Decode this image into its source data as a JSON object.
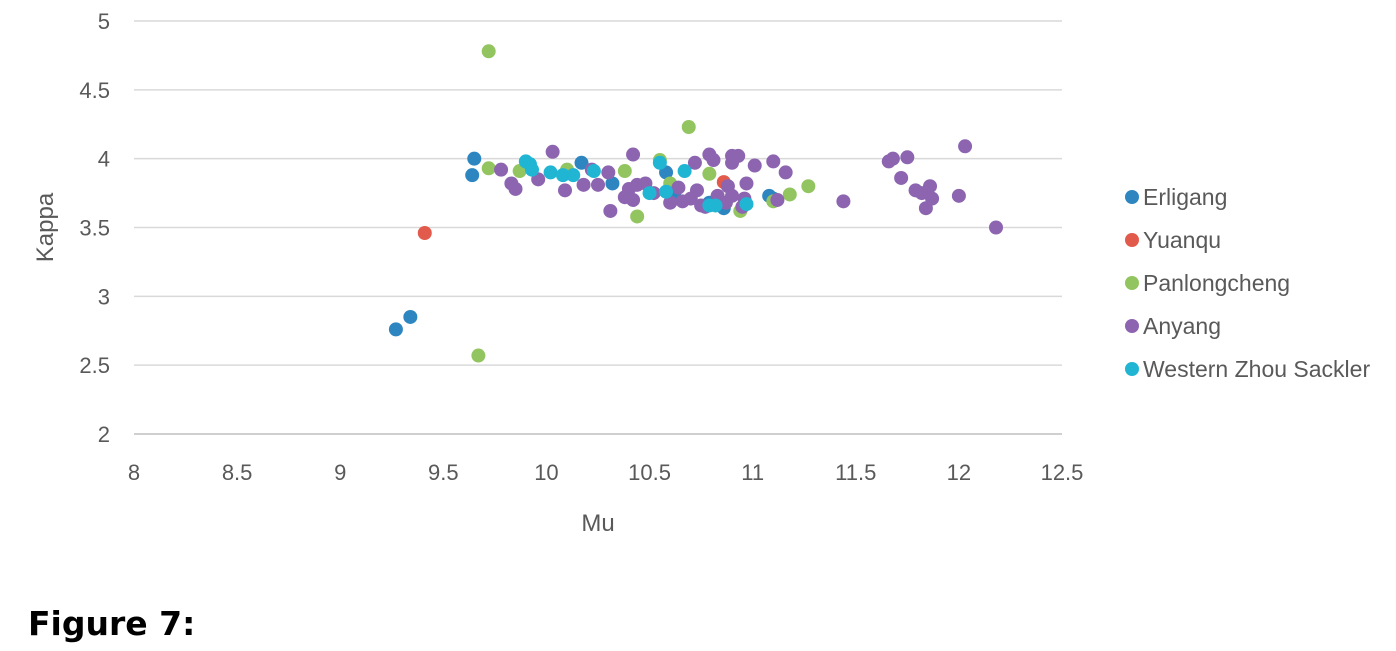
{
  "caption": "Figure 7:",
  "chart_data": {
    "type": "scatter",
    "xlabel": "Mu",
    "ylabel": "Kappa",
    "xlim": [
      8,
      12.5
    ],
    "ylim": [
      2,
      5
    ],
    "x_ticks": [
      "8",
      "8.5",
      "9",
      "9.5",
      "10",
      "10.5",
      "11",
      "11.5",
      "12",
      "12.5"
    ],
    "y_ticks": [
      "2",
      "2.5",
      "3",
      "3.5",
      "4",
      "4.5",
      "5"
    ],
    "grid": "horizontal",
    "legend_position": "right",
    "series": [
      {
        "name": "Erligang",
        "color": "#2E86C1",
        "points": [
          [
            9.27,
            2.76
          ],
          [
            9.34,
            2.85
          ],
          [
            9.65,
            4.0
          ],
          [
            9.64,
            3.88
          ],
          [
            10.17,
            3.97
          ],
          [
            10.32,
            3.82
          ],
          [
            10.58,
            3.9
          ],
          [
            10.62,
            3.73
          ],
          [
            10.86,
            3.64
          ],
          [
            11.08,
            3.73
          ],
          [
            11.1,
            3.71
          ],
          [
            10.79,
            3.68
          ]
        ]
      },
      {
        "name": "Yuanqu",
        "color": "#E15A4B",
        "points": [
          [
            9.41,
            3.46
          ],
          [
            10.86,
            3.83
          ]
        ]
      },
      {
        "name": "Panlongcheng",
        "color": "#92C560",
        "points": [
          [
            9.72,
            4.78
          ],
          [
            9.67,
            2.57
          ],
          [
            9.72,
            3.93
          ],
          [
            9.87,
            3.91
          ],
          [
            10.1,
            3.92
          ],
          [
            10.38,
            3.91
          ],
          [
            10.44,
            3.58
          ],
          [
            10.55,
            3.99
          ],
          [
            10.6,
            3.82
          ],
          [
            10.69,
            4.23
          ],
          [
            10.79,
            3.89
          ],
          [
            10.94,
            3.62
          ],
          [
            11.1,
            3.69
          ],
          [
            11.18,
            3.74
          ],
          [
            11.27,
            3.8
          ]
        ]
      },
      {
        "name": "Anyang",
        "color": "#8C64B0",
        "points": [
          [
            9.78,
            3.92
          ],
          [
            9.83,
            3.82
          ],
          [
            9.85,
            3.78
          ],
          [
            9.96,
            3.85
          ],
          [
            10.03,
            4.05
          ],
          [
            10.09,
            3.77
          ],
          [
            10.18,
            3.81
          ],
          [
            10.22,
            3.92
          ],
          [
            10.25,
            3.81
          ],
          [
            10.3,
            3.9
          ],
          [
            10.31,
            3.62
          ],
          [
            10.38,
            3.72
          ],
          [
            10.4,
            3.78
          ],
          [
            10.42,
            3.7
          ],
          [
            10.42,
            4.03
          ],
          [
            10.44,
            3.81
          ],
          [
            10.48,
            3.82
          ],
          [
            10.52,
            3.75
          ],
          [
            10.6,
            3.68
          ],
          [
            10.64,
            3.79
          ],
          [
            10.66,
            3.69
          ],
          [
            10.7,
            3.71
          ],
          [
            10.72,
            3.97
          ],
          [
            10.73,
            3.77
          ],
          [
            10.75,
            3.66
          ],
          [
            10.77,
            3.65
          ],
          [
            10.79,
            4.03
          ],
          [
            10.81,
            3.99
          ],
          [
            10.83,
            3.73
          ],
          [
            10.87,
            3.68
          ],
          [
            10.88,
            3.8
          ],
          [
            10.9,
            4.02
          ],
          [
            10.9,
            3.97
          ],
          [
            10.9,
            3.73
          ],
          [
            10.93,
            4.02
          ],
          [
            10.95,
            3.65
          ],
          [
            10.96,
            3.71
          ],
          [
            10.97,
            3.82
          ],
          [
            11.01,
            3.95
          ],
          [
            11.1,
            3.98
          ],
          [
            11.12,
            3.7
          ],
          [
            11.16,
            3.9
          ],
          [
            11.44,
            3.69
          ],
          [
            11.66,
            3.98
          ],
          [
            11.68,
            4.0
          ],
          [
            11.72,
            3.86
          ],
          [
            11.75,
            4.01
          ],
          [
            11.79,
            3.77
          ],
          [
            11.82,
            3.75
          ],
          [
            11.84,
            3.64
          ],
          [
            11.86,
            3.8
          ],
          [
            11.87,
            3.71
          ],
          [
            12.0,
            3.73
          ],
          [
            12.03,
            4.09
          ],
          [
            12.18,
            3.5
          ]
        ]
      },
      {
        "name": "Western Zhou Sackler",
        "color": "#1FB5D3",
        "points": [
          [
            9.9,
            3.98
          ],
          [
            9.92,
            3.96
          ],
          [
            9.93,
            3.92
          ],
          [
            10.02,
            3.9
          ],
          [
            10.08,
            3.88
          ],
          [
            10.13,
            3.88
          ],
          [
            10.23,
            3.91
          ],
          [
            10.5,
            3.75
          ],
          [
            10.55,
            3.97
          ],
          [
            10.58,
            3.76
          ],
          [
            10.67,
            3.91
          ],
          [
            10.79,
            3.66
          ],
          [
            10.82,
            3.66
          ],
          [
            10.97,
            3.67
          ]
        ]
      }
    ]
  }
}
